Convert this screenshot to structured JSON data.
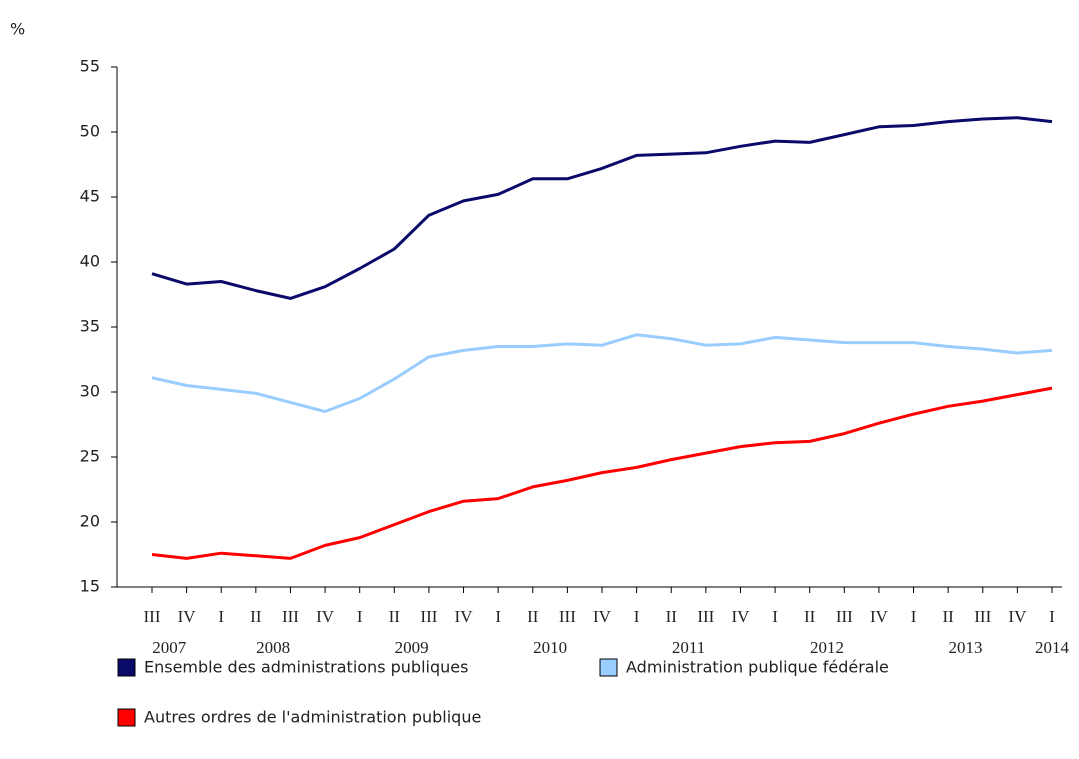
{
  "chart_data": {
    "type": "line",
    "y_unit": "%",
    "categories": [
      "III",
      "IV",
      "I",
      "II",
      "III",
      "IV",
      "I",
      "II",
      "III",
      "IV",
      "I",
      "II",
      "III",
      "IV",
      "I",
      "II",
      "III",
      "IV",
      "I",
      "II",
      "III",
      "IV",
      "I",
      "II",
      "III",
      "IV",
      "I"
    ],
    "year_labels": [
      "2007",
      null,
      null,
      "2008",
      null,
      null,
      null,
      "2009",
      null,
      null,
      null,
      "2010",
      null,
      null,
      null,
      "2011",
      null,
      null,
      null,
      "2012",
      null,
      null,
      null,
      "2013",
      null,
      null,
      "2014"
    ],
    "series": [
      {
        "name": "Ensemble des administrations publiques",
        "color": "#0a0a6b",
        "values": [
          39.1,
          38.3,
          38.5,
          37.8,
          37.2,
          38.1,
          39.5,
          41.0,
          43.6,
          44.7,
          45.2,
          46.4,
          46.4,
          47.2,
          48.2,
          48.3,
          48.4,
          48.9,
          49.3,
          49.2,
          49.8,
          50.4,
          50.5,
          50.8,
          51.0,
          51.1,
          50.8
        ]
      },
      {
        "name": "Administration publique fédérale",
        "color": "#99ccff",
        "values": [
          31.1,
          30.5,
          30.2,
          29.9,
          29.2,
          28.5,
          29.5,
          31.0,
          32.7,
          33.2,
          33.5,
          33.5,
          33.7,
          33.6,
          34.4,
          34.1,
          33.6,
          33.7,
          34.2,
          34.0,
          33.8,
          33.8,
          33.8,
          33.5,
          33.3,
          33.0,
          33.2
        ]
      },
      {
        "name": "Autres ordres de l'administration publique",
        "color": "#ff0000",
        "values": [
          17.5,
          17.2,
          17.6,
          17.4,
          17.2,
          18.2,
          18.8,
          19.8,
          20.8,
          21.6,
          21.8,
          22.7,
          23.2,
          23.8,
          24.2,
          24.8,
          25.3,
          25.8,
          26.1,
          26.2,
          26.8,
          27.6,
          28.3,
          28.9,
          29.3,
          29.8,
          30.3
        ]
      }
    ],
    "ylim": [
      15,
      55
    ],
    "yticks": [
      15,
      20,
      25,
      30,
      35,
      40,
      45,
      50,
      55
    ]
  }
}
